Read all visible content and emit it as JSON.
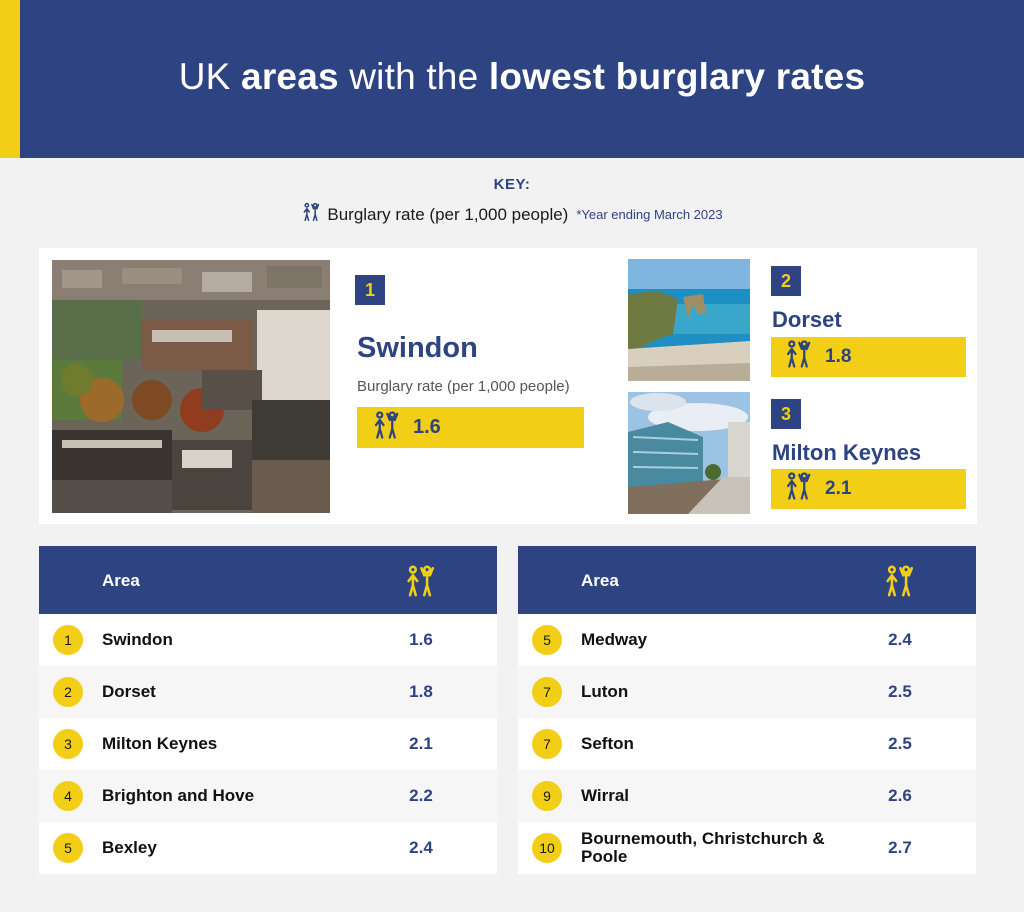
{
  "header": {
    "title_part1": "UK ",
    "title_bold1": "areas",
    "title_part2": " with the ",
    "title_bold2": "lowest burglary rates"
  },
  "key": {
    "title": "KEY:",
    "label": "Burglary rate (per 1,000 people)",
    "note": "*Year ending March 2023",
    "icon": "burglar-icon"
  },
  "featured": {
    "first": {
      "rank": "1",
      "name": "Swindon",
      "subtitle": "Burglary rate (per 1,000 people)",
      "value": "1.6"
    },
    "second": {
      "rank": "2",
      "name": "Dorset",
      "value": "1.8"
    },
    "third": {
      "rank": "3",
      "name": "Milton Keynes",
      "value": "2.1"
    }
  },
  "table_left": {
    "header_area": "Area",
    "header_icon": "burglar-icon",
    "rows": [
      {
        "rank": "1",
        "area": "Swindon",
        "value": "1.6"
      },
      {
        "rank": "2",
        "area": "Dorset",
        "value": "1.8"
      },
      {
        "rank": "3",
        "area": "Milton Keynes",
        "value": "2.1"
      },
      {
        "rank": "4",
        "area": "Brighton and Hove",
        "value": "2.2"
      },
      {
        "rank": "5",
        "area": "Bexley",
        "value": "2.4"
      }
    ]
  },
  "table_right": {
    "header_area": "Area",
    "header_icon": "burglar-icon",
    "rows": [
      {
        "rank": "5",
        "area": "Medway",
        "value": "2.4"
      },
      {
        "rank": "7",
        "area": "Luton",
        "value": "2.5"
      },
      {
        "rank": "7",
        "area": "Sefton",
        "value": "2.5"
      },
      {
        "rank": "9",
        "area": "Wirral",
        "value": "2.6"
      },
      {
        "rank": "10",
        "area": "Bournemouth, Christchurch & Poole",
        "value": "2.7"
      }
    ]
  },
  "colors": {
    "navy": "#2d4382",
    "yellow": "#f2cf16",
    "background": "#f2f2f2"
  }
}
